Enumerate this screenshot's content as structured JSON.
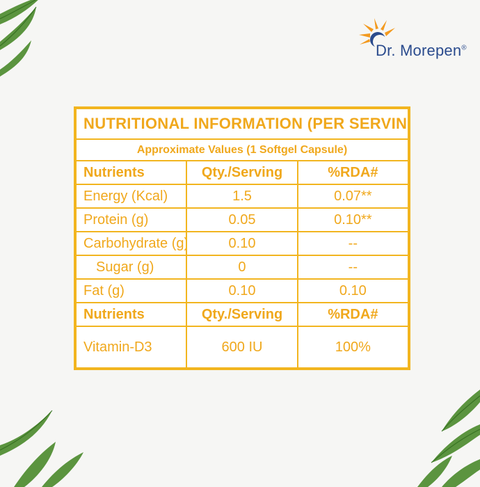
{
  "brand": {
    "name": "Dr. Morepen",
    "mark": "®",
    "colors": {
      "sun_orange": "#f39a1f",
      "text_blue": "#2a4b8d"
    }
  },
  "table": {
    "title": "NUTRITIONAL INFORMATION (PER SERVING)",
    "subtitle": "Approximate Values (1 Softgel Capsule)",
    "headers": [
      "Nutrients",
      "Qty./Serving",
      "%RDA#"
    ],
    "rows": [
      {
        "nutrient": "Energy (Kcal)",
        "qty": "1.5",
        "rda": "0.07**"
      },
      {
        "nutrient": "Protein (g)",
        "qty": "0.05",
        "rda": "0.10**"
      },
      {
        "nutrient": "Carbohydrate (g)",
        "qty": "0.10",
        "rda": "--"
      },
      {
        "nutrient": "Sugar (g)",
        "qty": "0",
        "rda": "--"
      },
      {
        "nutrient": "Fat (g)",
        "qty": "0.10",
        "rda": "0.10"
      }
    ],
    "headers2": [
      "Nutrients",
      "Qty./Serving",
      "%RDA#"
    ],
    "rows2": [
      {
        "nutrient": "Vitamin-D3",
        "qty": "600 IU",
        "rda": "100%"
      }
    ],
    "accent_color": "#f0a81c"
  },
  "decor": {
    "leaf_color": "#3f7a2a",
    "leaf_icon": "leaf-icon"
  }
}
